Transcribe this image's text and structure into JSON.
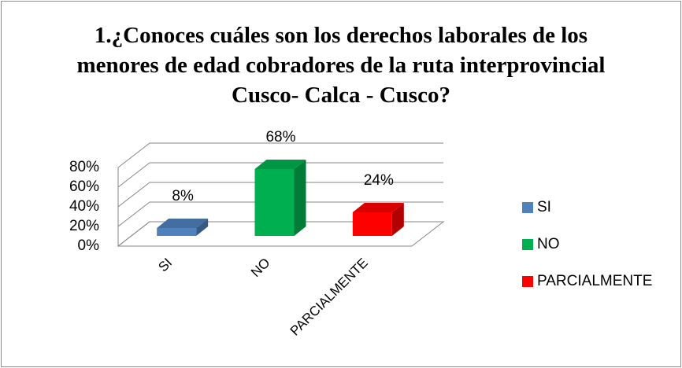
{
  "chart_data": {
    "type": "bar3d",
    "title": "1.¿Conoces cuáles son los derechos laborales de los menores de edad cobradores de la ruta interprovincial Cusco- Calca - Cusco?",
    "categories": [
      "SI",
      "NO",
      "PARCIALMENTE"
    ],
    "series": [
      {
        "name": "SI",
        "color": "#4f81bd"
      },
      {
        "name": "NO",
        "color": "#00b050"
      },
      {
        "name": "PARCIALMENTE",
        "color": "#ff0000"
      }
    ],
    "values": [
      8,
      68,
      24
    ],
    "value_labels": [
      "8%",
      "68%",
      "24%"
    ],
    "ylim": [
      0,
      80
    ],
    "yticks": [
      {
        "value": 0,
        "label": "0%"
      },
      {
        "value": 20,
        "label": "20%"
      },
      {
        "value": 40,
        "label": "40%"
      },
      {
        "value": 60,
        "label": "60%"
      },
      {
        "value": 80,
        "label": "80%"
      }
    ],
    "grid": true,
    "legend": "right"
  }
}
